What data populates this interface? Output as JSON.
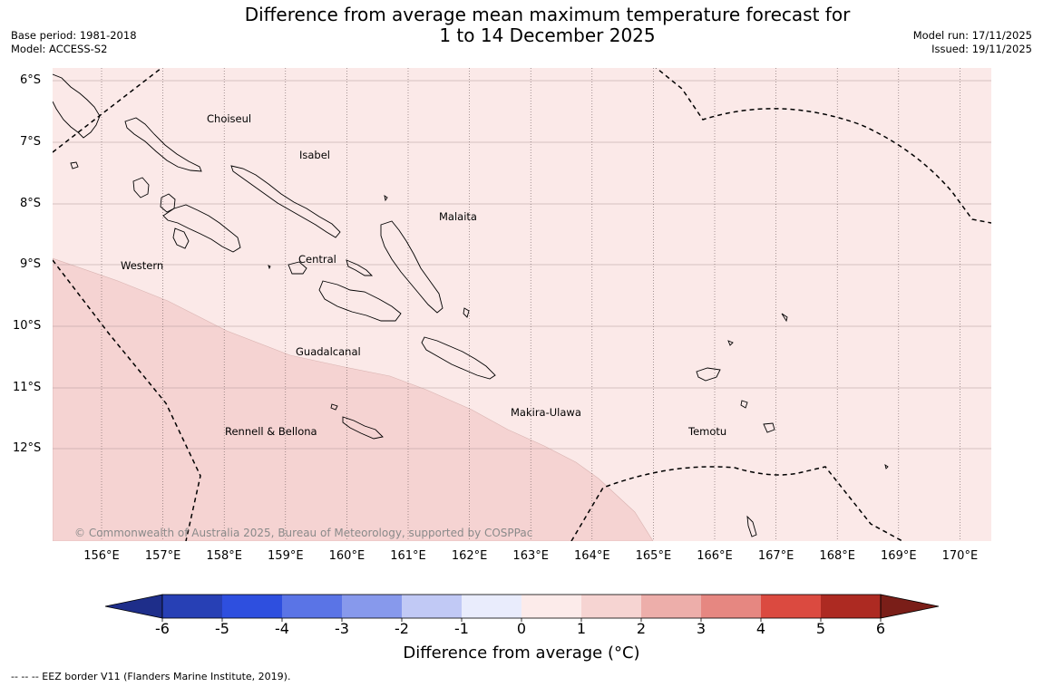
{
  "title": {
    "line1": "Difference from average mean maximum temperature forecast for",
    "line2": "1 to 14 December 2025"
  },
  "meta_left": {
    "base_period": "Base period: 1981-2018",
    "model": "Model: ACCESS-S2"
  },
  "meta_right": {
    "model_run": "Model run: 17/11/2025",
    "issued": "Issued: 19/11/2025"
  },
  "map": {
    "lat_labels": [
      "6°S",
      "7°S",
      "8°S",
      "9°S",
      "10°S",
      "11°S",
      "12°S"
    ],
    "lon_labels": [
      "156°E",
      "157°E",
      "158°E",
      "159°E",
      "160°E",
      "161°E",
      "162°E",
      "163°E",
      "164°E",
      "165°E",
      "166°E",
      "167°E",
      "168°E",
      "169°E",
      "170°E"
    ],
    "provinces": {
      "choiseul": "Choiseul",
      "isabel": "Isabel",
      "malaita": "Malaita",
      "western": "Western",
      "central": "Central",
      "guadalcanal": "Guadalcanal",
      "makira": "Makira-Ulawa",
      "rennell": "Rennell & Bellona",
      "temotu": "Temotu"
    },
    "copyright": "© Commonwealth of Australia 2025, Bureau of Meteorology, supported by COSPPac",
    "colors": {
      "class_0_1": "#fbe9e8",
      "class_1_2": "#f5d3d2",
      "coast": "#000000"
    }
  },
  "colorbar": {
    "ticks": [
      "-6",
      "-5",
      "-4",
      "-3",
      "-2",
      "-1",
      "0",
      "1",
      "2",
      "3",
      "4",
      "5",
      "6"
    ],
    "colors": [
      "#1e2e8a",
      "#2740b5",
      "#2e4fdf",
      "#5a74e6",
      "#8799ec",
      "#c1c9f5",
      "#e9ecfc",
      "#fcebea",
      "#f6d4d2",
      "#edaeaa",
      "#e68781",
      "#db4a40",
      "#ad2a22",
      "#7a1e18"
    ],
    "title": "Difference from average (°C)"
  },
  "footnote": "--  --  -- EEZ border V11 (Flanders Marine Institute, 2019)."
}
